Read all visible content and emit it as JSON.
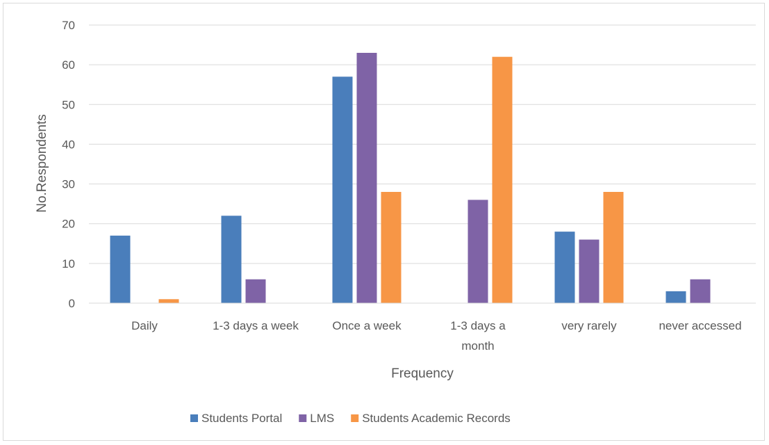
{
  "chart_data": {
    "type": "bar",
    "title": "",
    "xlabel": "Frequency",
    "ylabel": "No.Respondents",
    "categories": [
      [
        "Daily"
      ],
      [
        "1-3 days a week"
      ],
      [
        "Once a week"
      ],
      [
        "1-3 days a",
        "month"
      ],
      [
        "very rarely"
      ],
      [
        "never accessed"
      ]
    ],
    "series": [
      {
        "name": "Students Portal",
        "color": "#4a7ebb",
        "values": [
          17,
          22,
          57,
          0,
          18,
          3
        ]
      },
      {
        "name": "LMS",
        "color": "#7f63a6",
        "values": [
          0,
          6,
          63,
          26,
          16,
          6
        ]
      },
      {
        "name": "Students Academic Records",
        "color": "#f79646",
        "values": [
          1,
          0,
          28,
          62,
          28,
          0
        ]
      }
    ],
    "ylim": [
      0,
      70
    ],
    "yticks": [
      0,
      10,
      20,
      30,
      40,
      50,
      60,
      70
    ],
    "grid": true,
    "legend_position": "bottom"
  }
}
